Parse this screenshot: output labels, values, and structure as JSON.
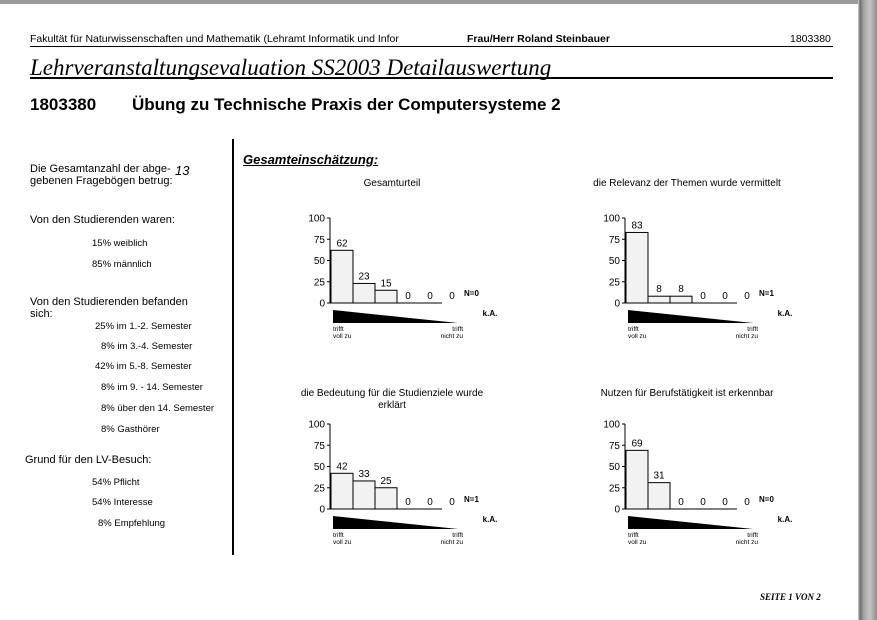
{
  "header": {
    "faculty": "Fakultät für Naturwissenschaften und Mathematik (Lehramt Informatik und Infor",
    "lecturer": "Frau/Herr Roland Steinbauer",
    "course_id": "1803380"
  },
  "document_title": "Lehrveranstaltungsevaluation SS2003 Detailauswertung",
  "course": {
    "number": "1803380",
    "title": "Übung zu Technische Praxis der Computersysteme 2"
  },
  "summary": {
    "count_label_line1": "Die Gesamtanzahl der abge-",
    "count_label_line2": "gebenen Fragebögen betrug:",
    "count_value": "13",
    "gender_heading": "Von den Studierenden waren:",
    "gender": [
      {
        "pct": "15%",
        "label": "weiblich"
      },
      {
        "pct": "85%",
        "label": "männlich"
      }
    ],
    "semester_heading_line1": "Von den Studierenden befanden",
    "semester_heading_line2": "sich:",
    "semesters": [
      {
        "pct": "25%",
        "label": "im 1.-2. Semester"
      },
      {
        "pct": "8%",
        "label": "im 3.-4. Semester"
      },
      {
        "pct": "42%",
        "label": "im 5.-8. Semester"
      },
      {
        "pct": "8%",
        "label": "im 9. - 14. Semester"
      },
      {
        "pct": "8%",
        "label": "über den 14. Semester"
      },
      {
        "pct": "8%",
        "label": "Gasthörer"
      }
    ],
    "reason_heading": "Grund für den LV-Besuch:",
    "reasons": [
      {
        "pct": "54%",
        "label": "Pflicht"
      },
      {
        "pct": "54%",
        "label": "Interesse"
      },
      {
        "pct": "8%",
        "label": "Empfehlung"
      }
    ]
  },
  "section_heading": "Gesamteinschätzung:",
  "scale_labels": {
    "left_line1": "trifft",
    "left_line2": "voll zu",
    "right_line1": "trifft",
    "right_line2": "nicht zu",
    "ka": "k.A."
  },
  "colors": {
    "bar_fill": "#f2f2f2",
    "scale_wedge": "#000000",
    "scan_edge": "#8d8d8d"
  },
  "chart_data": [
    {
      "type": "bar",
      "title": "Gesamturteil",
      "title_line2": "",
      "categories": [
        "1",
        "2",
        "3",
        "4",
        "5"
      ],
      "values": [
        62,
        23,
        15,
        0,
        0
      ],
      "extra_value": "0",
      "n_label": "N=0",
      "ylim": [
        0,
        100
      ],
      "yticks": [
        0,
        25,
        50,
        75,
        100
      ]
    },
    {
      "type": "bar",
      "title": "die Relevanz der Themen wurde vermittelt",
      "title_line2": "",
      "categories": [
        "1",
        "2",
        "3",
        "4",
        "5"
      ],
      "values": [
        83,
        8,
        8,
        0,
        0
      ],
      "extra_value": "0",
      "n_label": "N=1",
      "ylim": [
        0,
        100
      ],
      "yticks": [
        0,
        25,
        50,
        75,
        100
      ]
    },
    {
      "type": "bar",
      "title": "die Bedeutung für die Studienziele wurde",
      "title_line2": "erklärt",
      "categories": [
        "1",
        "2",
        "3",
        "4",
        "5"
      ],
      "values": [
        42,
        33,
        25,
        0,
        0
      ],
      "extra_value": "0",
      "n_label": "N=1",
      "ylim": [
        0,
        100
      ],
      "yticks": [
        0,
        25,
        50,
        75,
        100
      ]
    },
    {
      "type": "bar",
      "title": "Nutzen für Berufstätigkeit ist erkennbar",
      "title_line2": "",
      "categories": [
        "1",
        "2",
        "3",
        "4",
        "5"
      ],
      "values": [
        69,
        31,
        0,
        0,
        0
      ],
      "extra_value": "0",
      "n_label": "N=0",
      "ylim": [
        0,
        100
      ],
      "yticks": [
        0,
        25,
        50,
        75,
        100
      ]
    }
  ],
  "footer": "SEITE 1 VON 2"
}
